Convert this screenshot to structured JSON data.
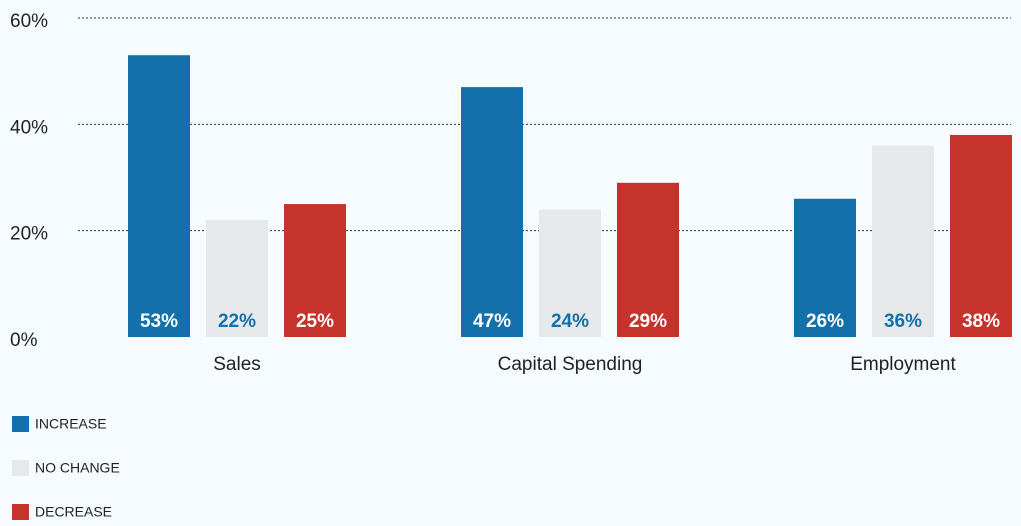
{
  "chart_data": {
    "type": "bar",
    "categories": [
      "Sales",
      "Capital Spending",
      "Employment"
    ],
    "series": [
      {
        "name": "INCREASE",
        "color": "#1470aa",
        "label_color": "#ffffff",
        "values": [
          53,
          47,
          26
        ],
        "value_labels": [
          "53%",
          "47%",
          "26%"
        ]
      },
      {
        "name": "NO CHANGE",
        "color": "#e6e8ea",
        "label_color": "#1470aa",
        "values": [
          22,
          24,
          36
        ],
        "value_labels": [
          "22%",
          "24%",
          "36%"
        ]
      },
      {
        "name": "DECREASE",
        "color": "#c6322c",
        "label_color": "#ffffff",
        "values": [
          25,
          29,
          38
        ],
        "value_labels": [
          "25%",
          "29%",
          "38%"
        ]
      }
    ],
    "ylim": [
      0,
      60
    ],
    "yticks": [
      {
        "value": 0,
        "label": "0%"
      },
      {
        "value": 20,
        "label": "20%"
      },
      {
        "value": 40,
        "label": "40%"
      },
      {
        "value": 60,
        "label": "60%"
      }
    ],
    "grid": true
  }
}
